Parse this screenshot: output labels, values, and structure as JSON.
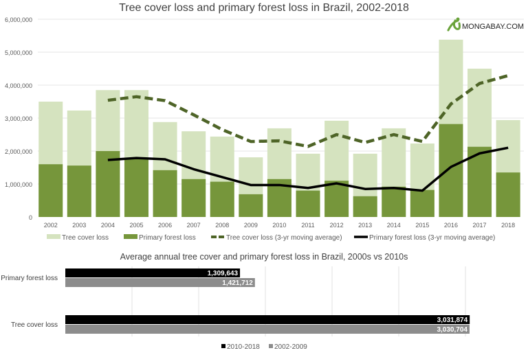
{
  "chart_data": [
    {
      "type": "bar",
      "title": "Tree cover loss and primary forest loss in Brazil, 2002-2018",
      "categories": [
        "2002",
        "2003",
        "2004",
        "2005",
        "2006",
        "2007",
        "2008",
        "2009",
        "2010",
        "2011",
        "2012",
        "2013",
        "2014",
        "2015",
        "2016",
        "2017",
        "2018"
      ],
      "ylim": [
        0,
        6000000
      ],
      "yticks": [
        0,
        1000000,
        2000000,
        3000000,
        4000000,
        5000000,
        6000000
      ],
      "ytick_labels": [
        "0",
        "1,000,000",
        "2,000,000",
        "3,000,000",
        "4,000,000",
        "5,000,000",
        "6,000,000"
      ],
      "grid": true,
      "legend_position": "bottom",
      "series": [
        {
          "name": "Tree cover loss",
          "kind": "bar",
          "color": "#d5e3bf",
          "values": [
            3500000,
            3230000,
            3850000,
            3850000,
            2880000,
            2600000,
            2440000,
            1810000,
            2690000,
            1920000,
            2920000,
            1920000,
            2690000,
            2230000,
            5380000,
            4500000,
            2940000
          ]
        },
        {
          "name": "Primary forest loss",
          "kind": "bar",
          "color": "#76963b",
          "values": [
            1600000,
            1560000,
            2000000,
            1750000,
            1420000,
            1150000,
            1070000,
            690000,
            1150000,
            800000,
            1100000,
            630000,
            920000,
            820000,
            2820000,
            2130000,
            1350000
          ]
        },
        {
          "name": "Tree cover loss (3-yr moving average)",
          "kind": "line",
          "style": "dashed",
          "color": "#4e6427",
          "values": [
            null,
            null,
            3540000,
            3650000,
            3530000,
            3100000,
            2650000,
            2290000,
            2310000,
            2140000,
            2500000,
            2260000,
            2500000,
            2290000,
            3430000,
            4050000,
            4290000
          ]
        },
        {
          "name": "Primary forest loss (3-yr moving average)",
          "kind": "line",
          "style": "solid",
          "color": "#000000",
          "values": [
            null,
            null,
            1730000,
            1790000,
            1750000,
            1450000,
            1210000,
            970000,
            970000,
            880000,
            1020000,
            850000,
            880000,
            800000,
            1520000,
            1930000,
            2100000
          ]
        }
      ]
    },
    {
      "type": "bar",
      "orientation": "horizontal",
      "title": "Average annual tree cover and primary forest loss in Brazil, 2000s vs 2010s",
      "categories": [
        "Primary forest loss",
        "Tree cover loss"
      ],
      "xlim": [
        0,
        3500000
      ],
      "grid": true,
      "legend_position": "bottom",
      "series": [
        {
          "name": "2010-2018",
          "color": "#000000",
          "values": [
            1309643,
            3031874
          ],
          "labels": [
            "1,309,643",
            "3,031,874"
          ]
        },
        {
          "name": "2002-2009",
          "color": "#8c8c8c",
          "values": [
            1421712,
            3030704
          ],
          "labels": [
            "1,421,712",
            "3,030,704"
          ]
        }
      ]
    }
  ],
  "logo": {
    "text": "MONGABAY.COM",
    "icon": "gecko-icon",
    "color": "#6aa33a"
  }
}
